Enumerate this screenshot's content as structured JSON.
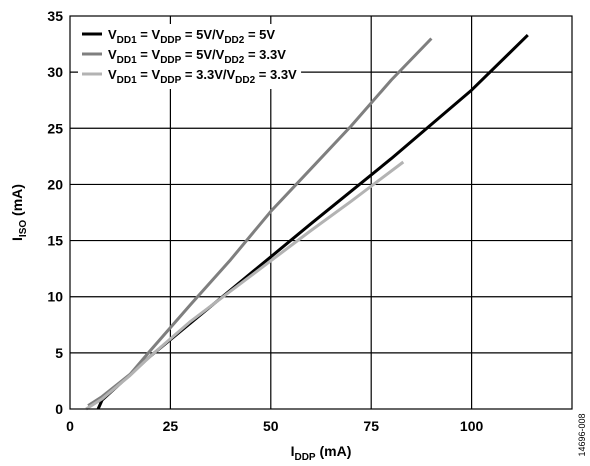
{
  "figure_id": "14696-008",
  "chart_data": {
    "type": "line",
    "xlabel_main": "I",
    "xlabel_sub": "DDP",
    "xlabel_unit": " (mA)",
    "ylabel_main": "I",
    "ylabel_sub": "ISO",
    "ylabel_unit": " (mA)",
    "xlim": [
      0,
      125
    ],
    "ylim": [
      0,
      35
    ],
    "xticks": [
      0,
      25,
      50,
      75,
      100
    ],
    "yticks": [
      0,
      5,
      10,
      15,
      20,
      25,
      30,
      35
    ],
    "grid": true,
    "legend_position": "top-left",
    "series": [
      {
        "name": "VDD1 = VDDP = 5V/VDD2 = 5V",
        "color": "#000000",
        "legend_parts": [
          {
            "t": "V"
          },
          {
            "t": "DD1",
            "sub": true
          },
          {
            "t": " = V"
          },
          {
            "t": "DDP",
            "sub": true
          },
          {
            "t": " = 5V/V"
          },
          {
            "t": "DD2",
            "sub": true
          },
          {
            "t": " = 5V"
          }
        ],
        "x": [
          7,
          8,
          20,
          40,
          60,
          80,
          100,
          114
        ],
        "y": [
          0,
          0.8,
          4.7,
          10.6,
          16.5,
          22.3,
          28.4,
          33.3
        ]
      },
      {
        "name": "VDD1 = VDDP = 5V/VDD2 = 3.3V",
        "color": "#7f7f7f",
        "legend_parts": [
          {
            "t": "V"
          },
          {
            "t": "DD1",
            "sub": true
          },
          {
            "t": " = V"
          },
          {
            "t": "DDP",
            "sub": true
          },
          {
            "t": " = 5V/V"
          },
          {
            "t": "DD2",
            "sub": true
          },
          {
            "t": " = 3.3V"
          }
        ],
        "x": [
          4.5,
          8,
          15,
          20,
          30,
          40,
          50,
          60,
          70,
          80,
          90
        ],
        "y": [
          0.3,
          1.1,
          3.1,
          5.2,
          9.3,
          13.3,
          17.6,
          21.4,
          25.2,
          29.3,
          33
        ]
      },
      {
        "name": "VDD1 = VDDP = 3.3V/VDD2 = 3.3V",
        "color": "#b3b3b3",
        "legend_parts": [
          {
            "t": "V"
          },
          {
            "t": "DD1",
            "sub": true
          },
          {
            "t": " = V"
          },
          {
            "t": "DDP",
            "sub": true
          },
          {
            "t": " = 3.3V/V"
          },
          {
            "t": "DD2",
            "sub": true
          },
          {
            "t": " = 3.3V"
          }
        ],
        "x": [
          4,
          8,
          15,
          20,
          30,
          40,
          50,
          60,
          70,
          83
        ],
        "y": [
          0,
          0.9,
          3,
          4.7,
          7.8,
          10.5,
          13.2,
          15.9,
          18.5,
          22
        ]
      }
    ]
  }
}
